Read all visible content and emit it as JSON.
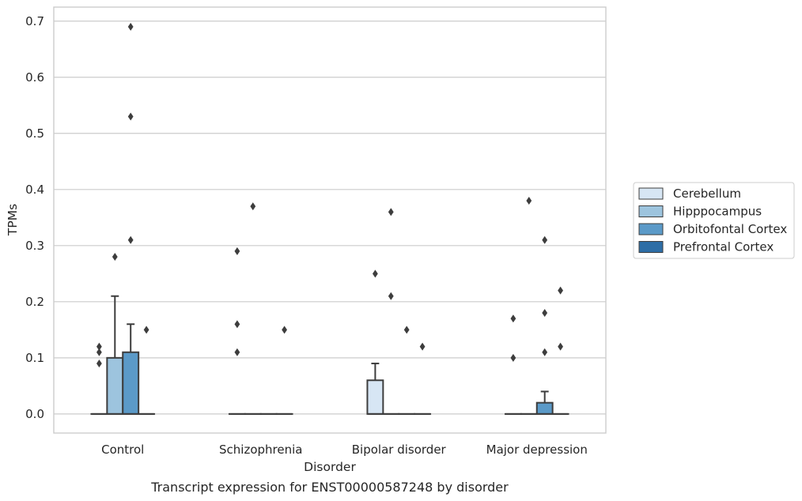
{
  "chart_data": {
    "type": "box",
    "caption": "Transcript expression for ENST00000587248 by disorder",
    "xlabel": "Disorder",
    "ylabel": "TPMs",
    "ylim": [
      -0.034,
      0.725
    ],
    "yticks": [
      "0.0",
      "0.1",
      "0.2",
      "0.3",
      "0.4",
      "0.5",
      "0.6",
      "0.7"
    ],
    "ytick_values": [
      0,
      0.1,
      0.2,
      0.3,
      0.4,
      0.5,
      0.6,
      0.7
    ],
    "grid": true,
    "legend_position": "right",
    "categories": [
      "Control",
      "Schizophrenia",
      "Bipolar disorder",
      "Major depression"
    ],
    "series": [
      {
        "name": "Cerebellum",
        "color": "#d7e6f4",
        "boxes": [
          {
            "q1": 0,
            "median": 0,
            "q3": 0,
            "whisker_low": 0,
            "whisker_high": 0,
            "outliers": [
              0.09,
              0.11,
              0.12
            ]
          },
          {
            "q1": 0,
            "median": 0,
            "q3": 0,
            "whisker_low": 0,
            "whisker_high": 0,
            "outliers": [
              0.11,
              0.16,
              0.29
            ]
          },
          {
            "q1": 0,
            "median": 0,
            "q3": 0.06,
            "whisker_low": 0,
            "whisker_high": 0.09,
            "outliers": [
              0.25
            ]
          },
          {
            "q1": 0,
            "median": 0,
            "q3": 0,
            "whisker_low": 0,
            "whisker_high": 0,
            "outliers": [
              0.1,
              0.17
            ]
          }
        ]
      },
      {
        "name": "Hipppocampus",
        "color": "#9dc4de",
        "boxes": [
          {
            "q1": 0,
            "median": 0,
            "q3": 0.1,
            "whisker_low": 0,
            "whisker_high": 0.21,
            "outliers": [
              0.28
            ]
          },
          {
            "q1": 0,
            "median": 0,
            "q3": 0,
            "whisker_low": 0,
            "whisker_high": 0,
            "outliers": [
              0.37
            ]
          },
          {
            "q1": 0,
            "median": 0,
            "q3": 0,
            "whisker_low": 0,
            "whisker_high": 0,
            "outliers": [
              0.21,
              0.36
            ]
          },
          {
            "q1": 0,
            "median": 0,
            "q3": 0,
            "whisker_low": 0,
            "whisker_high": 0,
            "outliers": [
              0.38
            ]
          }
        ]
      },
      {
        "name": "Orbitofontal Cortex",
        "color": "#5b9ac8",
        "boxes": [
          {
            "q1": 0,
            "median": 0,
            "q3": 0.11,
            "whisker_low": 0,
            "whisker_high": 0.16,
            "outliers": [
              0.31,
              0.53,
              0.69
            ]
          },
          {
            "q1": 0,
            "median": 0,
            "q3": 0,
            "whisker_low": 0,
            "whisker_high": 0,
            "outliers": []
          },
          {
            "q1": 0,
            "median": 0,
            "q3": 0,
            "whisker_low": 0,
            "whisker_high": 0,
            "outliers": [
              0.15
            ]
          },
          {
            "q1": 0,
            "median": 0,
            "q3": 0.02,
            "whisker_low": 0,
            "whisker_high": 0.04,
            "outliers": [
              0.11,
              0.18,
              0.31
            ]
          }
        ]
      },
      {
        "name": "Prefrontal Cortex",
        "color": "#2e6ea6",
        "boxes": [
          {
            "q1": 0,
            "median": 0,
            "q3": 0,
            "whisker_low": 0,
            "whisker_high": 0,
            "outliers": [
              0.15
            ]
          },
          {
            "q1": 0,
            "median": 0,
            "q3": 0,
            "whisker_low": 0,
            "whisker_high": 0,
            "outliers": [
              0.15
            ]
          },
          {
            "q1": 0,
            "median": 0,
            "q3": 0,
            "whisker_low": 0,
            "whisker_high": 0,
            "outliers": [
              0.12
            ]
          },
          {
            "q1": 0,
            "median": 0,
            "q3": 0,
            "whisker_low": 0,
            "whisker_high": 0,
            "outliers": [
              0.12,
              0.22
            ]
          }
        ]
      }
    ]
  }
}
